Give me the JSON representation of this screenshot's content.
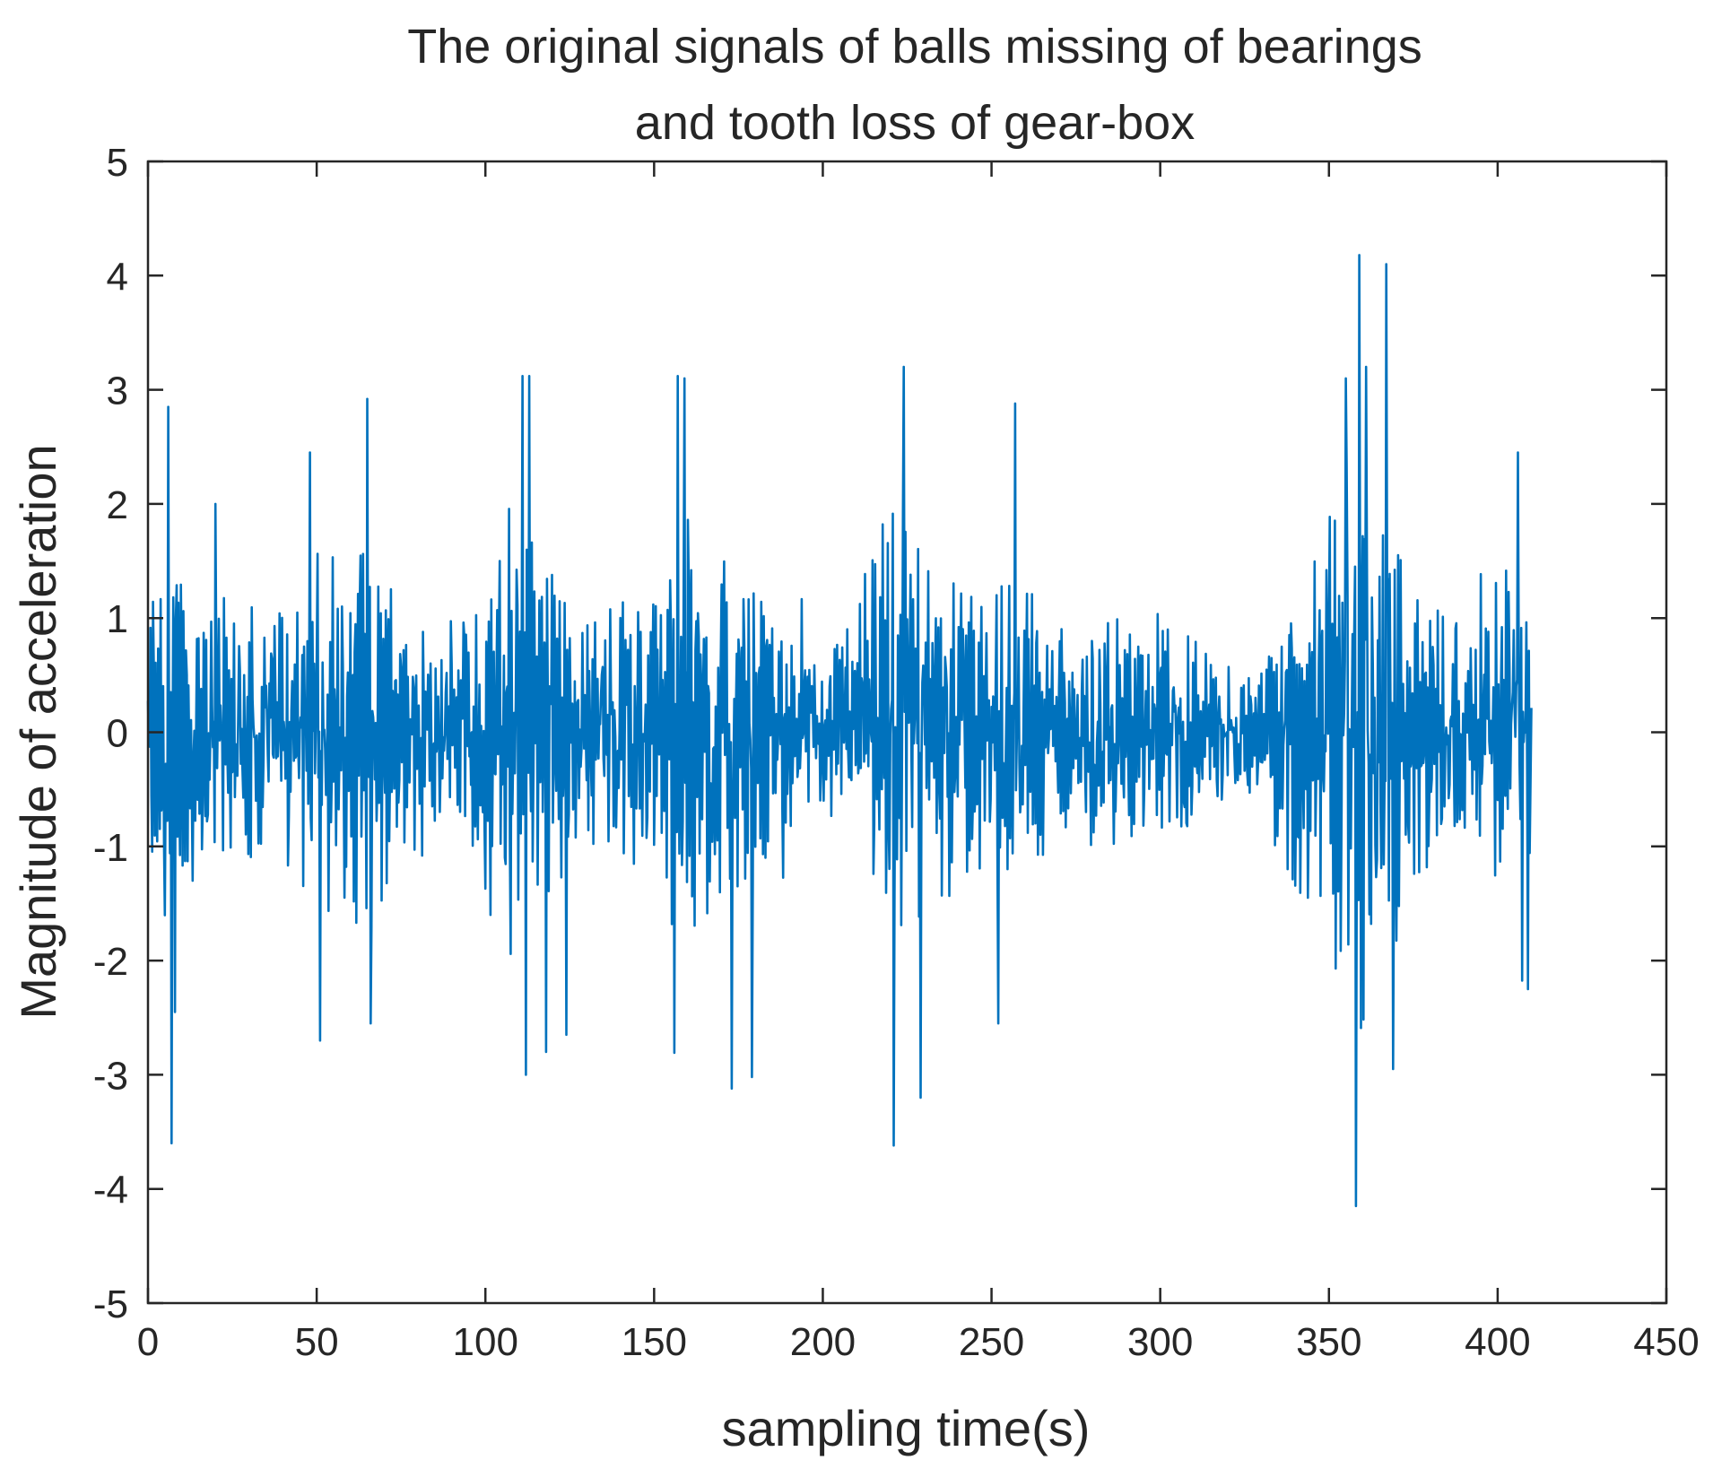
{
  "chart_data": {
    "type": "line",
    "title": [
      "The original signals of balls missing of bearings",
      "and tooth loss of gear-box"
    ],
    "xlabel": "sampling time(s)",
    "ylabel": "Magnitude of acceleration",
    "xlim": [
      0,
      450
    ],
    "ylim": [
      -5,
      5
    ],
    "xticks": [
      "0",
      "50",
      "100",
      "150",
      "200",
      "250",
      "300",
      "350",
      "400",
      "450"
    ],
    "yticks": [
      "5",
      "4",
      "3",
      "2",
      "1",
      "0",
      "-1",
      "-2",
      "-3",
      "-4",
      "-5"
    ],
    "grid": false,
    "legend": "none",
    "line_color": "#0072BD",
    "x_end": 410,
    "points_per_unit": 4,
    "envelope": [
      [
        0,
        1.0
      ],
      [
        5,
        1.6
      ],
      [
        10,
        1.4
      ],
      [
        20,
        1.1
      ],
      [
        30,
        1.2
      ],
      [
        40,
        1.0
      ],
      [
        50,
        1.4
      ],
      [
        60,
        1.5
      ],
      [
        66,
        1.8
      ],
      [
        75,
        1.2
      ],
      [
        85,
        0.8
      ],
      [
        95,
        1.1
      ],
      [
        105,
        1.7
      ],
      [
        112,
        1.8
      ],
      [
        120,
        1.2
      ],
      [
        130,
        0.9
      ],
      [
        140,
        1.0
      ],
      [
        150,
        1.2
      ],
      [
        158,
        1.8
      ],
      [
        165,
        1.4
      ],
      [
        175,
        1.3
      ],
      [
        185,
        1.0
      ],
      [
        195,
        0.6
      ],
      [
        205,
        0.8
      ],
      [
        215,
        1.4
      ],
      [
        222,
        1.9
      ],
      [
        230,
        1.5
      ],
      [
        240,
        1.2
      ],
      [
        250,
        1.1
      ],
      [
        258,
        1.3
      ],
      [
        270,
        0.8
      ],
      [
        285,
        1.0
      ],
      [
        300,
        0.9
      ],
      [
        315,
        0.7
      ],
      [
        325,
        0.4
      ],
      [
        335,
        0.9
      ],
      [
        345,
        1.5
      ],
      [
        352,
        2.0
      ],
      [
        360,
        2.4
      ],
      [
        368,
        2.0
      ],
      [
        375,
        1.2
      ],
      [
        385,
        1.0
      ],
      [
        395,
        1.2
      ],
      [
        405,
        1.4
      ],
      [
        410,
        1.2
      ]
    ],
    "peaks": [
      [
        6,
        2.85
      ],
      [
        7,
        -3.6
      ],
      [
        8,
        -2.45
      ],
      [
        20,
        2.0
      ],
      [
        48,
        2.45
      ],
      [
        51,
        -2.7
      ],
      [
        65,
        2.92
      ],
      [
        66,
        -2.55
      ],
      [
        111,
        3.12
      ],
      [
        112,
        -3.0
      ],
      [
        113,
        3.12
      ],
      [
        118,
        -2.8
      ],
      [
        124,
        -2.65
      ],
      [
        157,
        3.12
      ],
      [
        159,
        3.1
      ],
      [
        173,
        -3.12
      ],
      [
        179,
        -3.02
      ],
      [
        221,
        -3.62
      ],
      [
        224,
        3.2
      ],
      [
        229,
        -3.2
      ],
      [
        257,
        2.88
      ],
      [
        252,
        -2.55
      ],
      [
        355,
        3.1
      ],
      [
        358,
        -4.15
      ],
      [
        359,
        4.18
      ],
      [
        361,
        3.2
      ],
      [
        367,
        4.1
      ],
      [
        369,
        -2.95
      ],
      [
        406,
        2.45
      ],
      [
        409,
        -2.25
      ]
    ]
  }
}
